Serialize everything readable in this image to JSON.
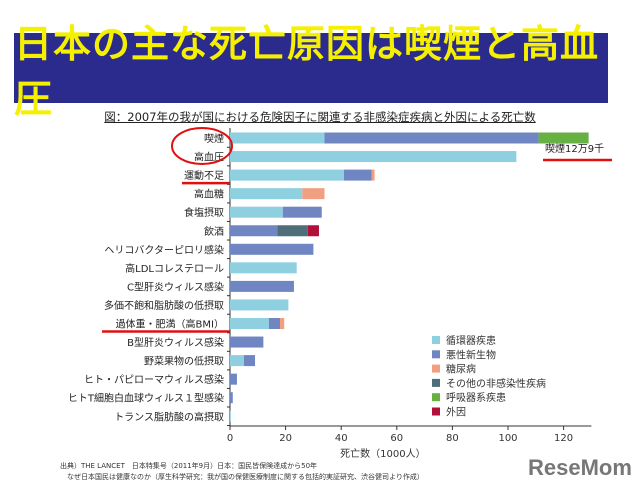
{
  "slide_title": "日本の主な死亡原因は喫煙と高血圧",
  "chart_data": {
    "type": "bar",
    "orientation": "horizontal",
    "stacked": true,
    "title": "図：2007年の我が国における危険因子に関連する非感染症疾病と外因による死亡数",
    "xlabel": "死亡数（1000人）",
    "ylabel": "",
    "xlim": [
      0,
      130
    ],
    "xticks": [
      0,
      20,
      40,
      60,
      80,
      100,
      120
    ],
    "grid": false,
    "legend_position": "bottom-right",
    "categories": [
      "喫煙",
      "高血圧",
      "運動不足",
      "高血糖",
      "食塩摂取",
      "飲酒",
      "ヘリコバクターピロリ感染",
      "高LDLコレステロール",
      "C型肝炎ウィルス感染",
      "多価不飽和脂肪酸の低摂取",
      "過体重・肥満（高BMI）",
      "B型肝炎ウィルス感染",
      "野菜果物の低摂取",
      "ヒト・パピローマウィルス感染",
      "ヒトT細胞白血球ウィルス１型感染",
      "トランス脂肪酸の高摂取"
    ],
    "series": [
      {
        "name": "循環器疾患",
        "color": "#8ecfe0",
        "values": [
          34,
          103,
          41,
          26,
          19,
          0,
          0,
          24,
          0,
          21,
          14,
          0,
          5,
          0,
          0,
          0.3
        ]
      },
      {
        "name": "悪性新生物",
        "color": "#6f86c2",
        "values": [
          77,
          0,
          10,
          0,
          14,
          17,
          30,
          0,
          23,
          0,
          4,
          12,
          4,
          2.5,
          1,
          0
        ]
      },
      {
        "name": "糖尿病",
        "color": "#f0a080",
        "values": [
          0,
          0,
          1,
          8,
          0,
          0,
          0,
          0,
          0,
          0,
          1.5,
          0,
          0,
          0,
          0,
          0
        ]
      },
      {
        "name": "その他の非感染性疾病",
        "color": "#4e6e7a",
        "values": [
          0,
          0,
          0,
          0,
          0,
          11,
          0,
          0,
          0,
          0,
          0,
          0,
          0,
          0,
          0,
          0
        ]
      },
      {
        "name": "呼吸器系疾患",
        "color": "#66b044",
        "values": [
          18,
          0,
          0,
          0,
          0,
          0,
          0,
          0,
          0,
          0,
          0,
          0,
          0,
          0,
          0,
          0
        ]
      },
      {
        "name": "外因",
        "color": "#b0103a",
        "values": [
          0,
          0,
          0,
          0,
          0,
          4,
          0,
          0,
          0,
          0,
          0,
          0,
          0,
          0,
          0,
          0
        ]
      }
    ],
    "annotations": [
      "喫煙12万9千"
    ],
    "highlighted_categories": [
      "喫煙",
      "高血圧",
      "運動不足",
      "過体重・肥満（高BMI）"
    ],
    "highlight_color": "#e01010"
  },
  "source_lines": [
    "出典）THE LANCET　日本特集号（2011年9月）日本：国民皆保険達成から50年",
    "　なぜ日本国民は健康なのか（厚生科学研究：我が国の保健医療制度に関する包括的実証研究、渋谷健司より作成）"
  ],
  "logo": "ReseMom",
  "colors": {
    "banner": "#2b2b8e",
    "title_text": "#f5f000"
  }
}
